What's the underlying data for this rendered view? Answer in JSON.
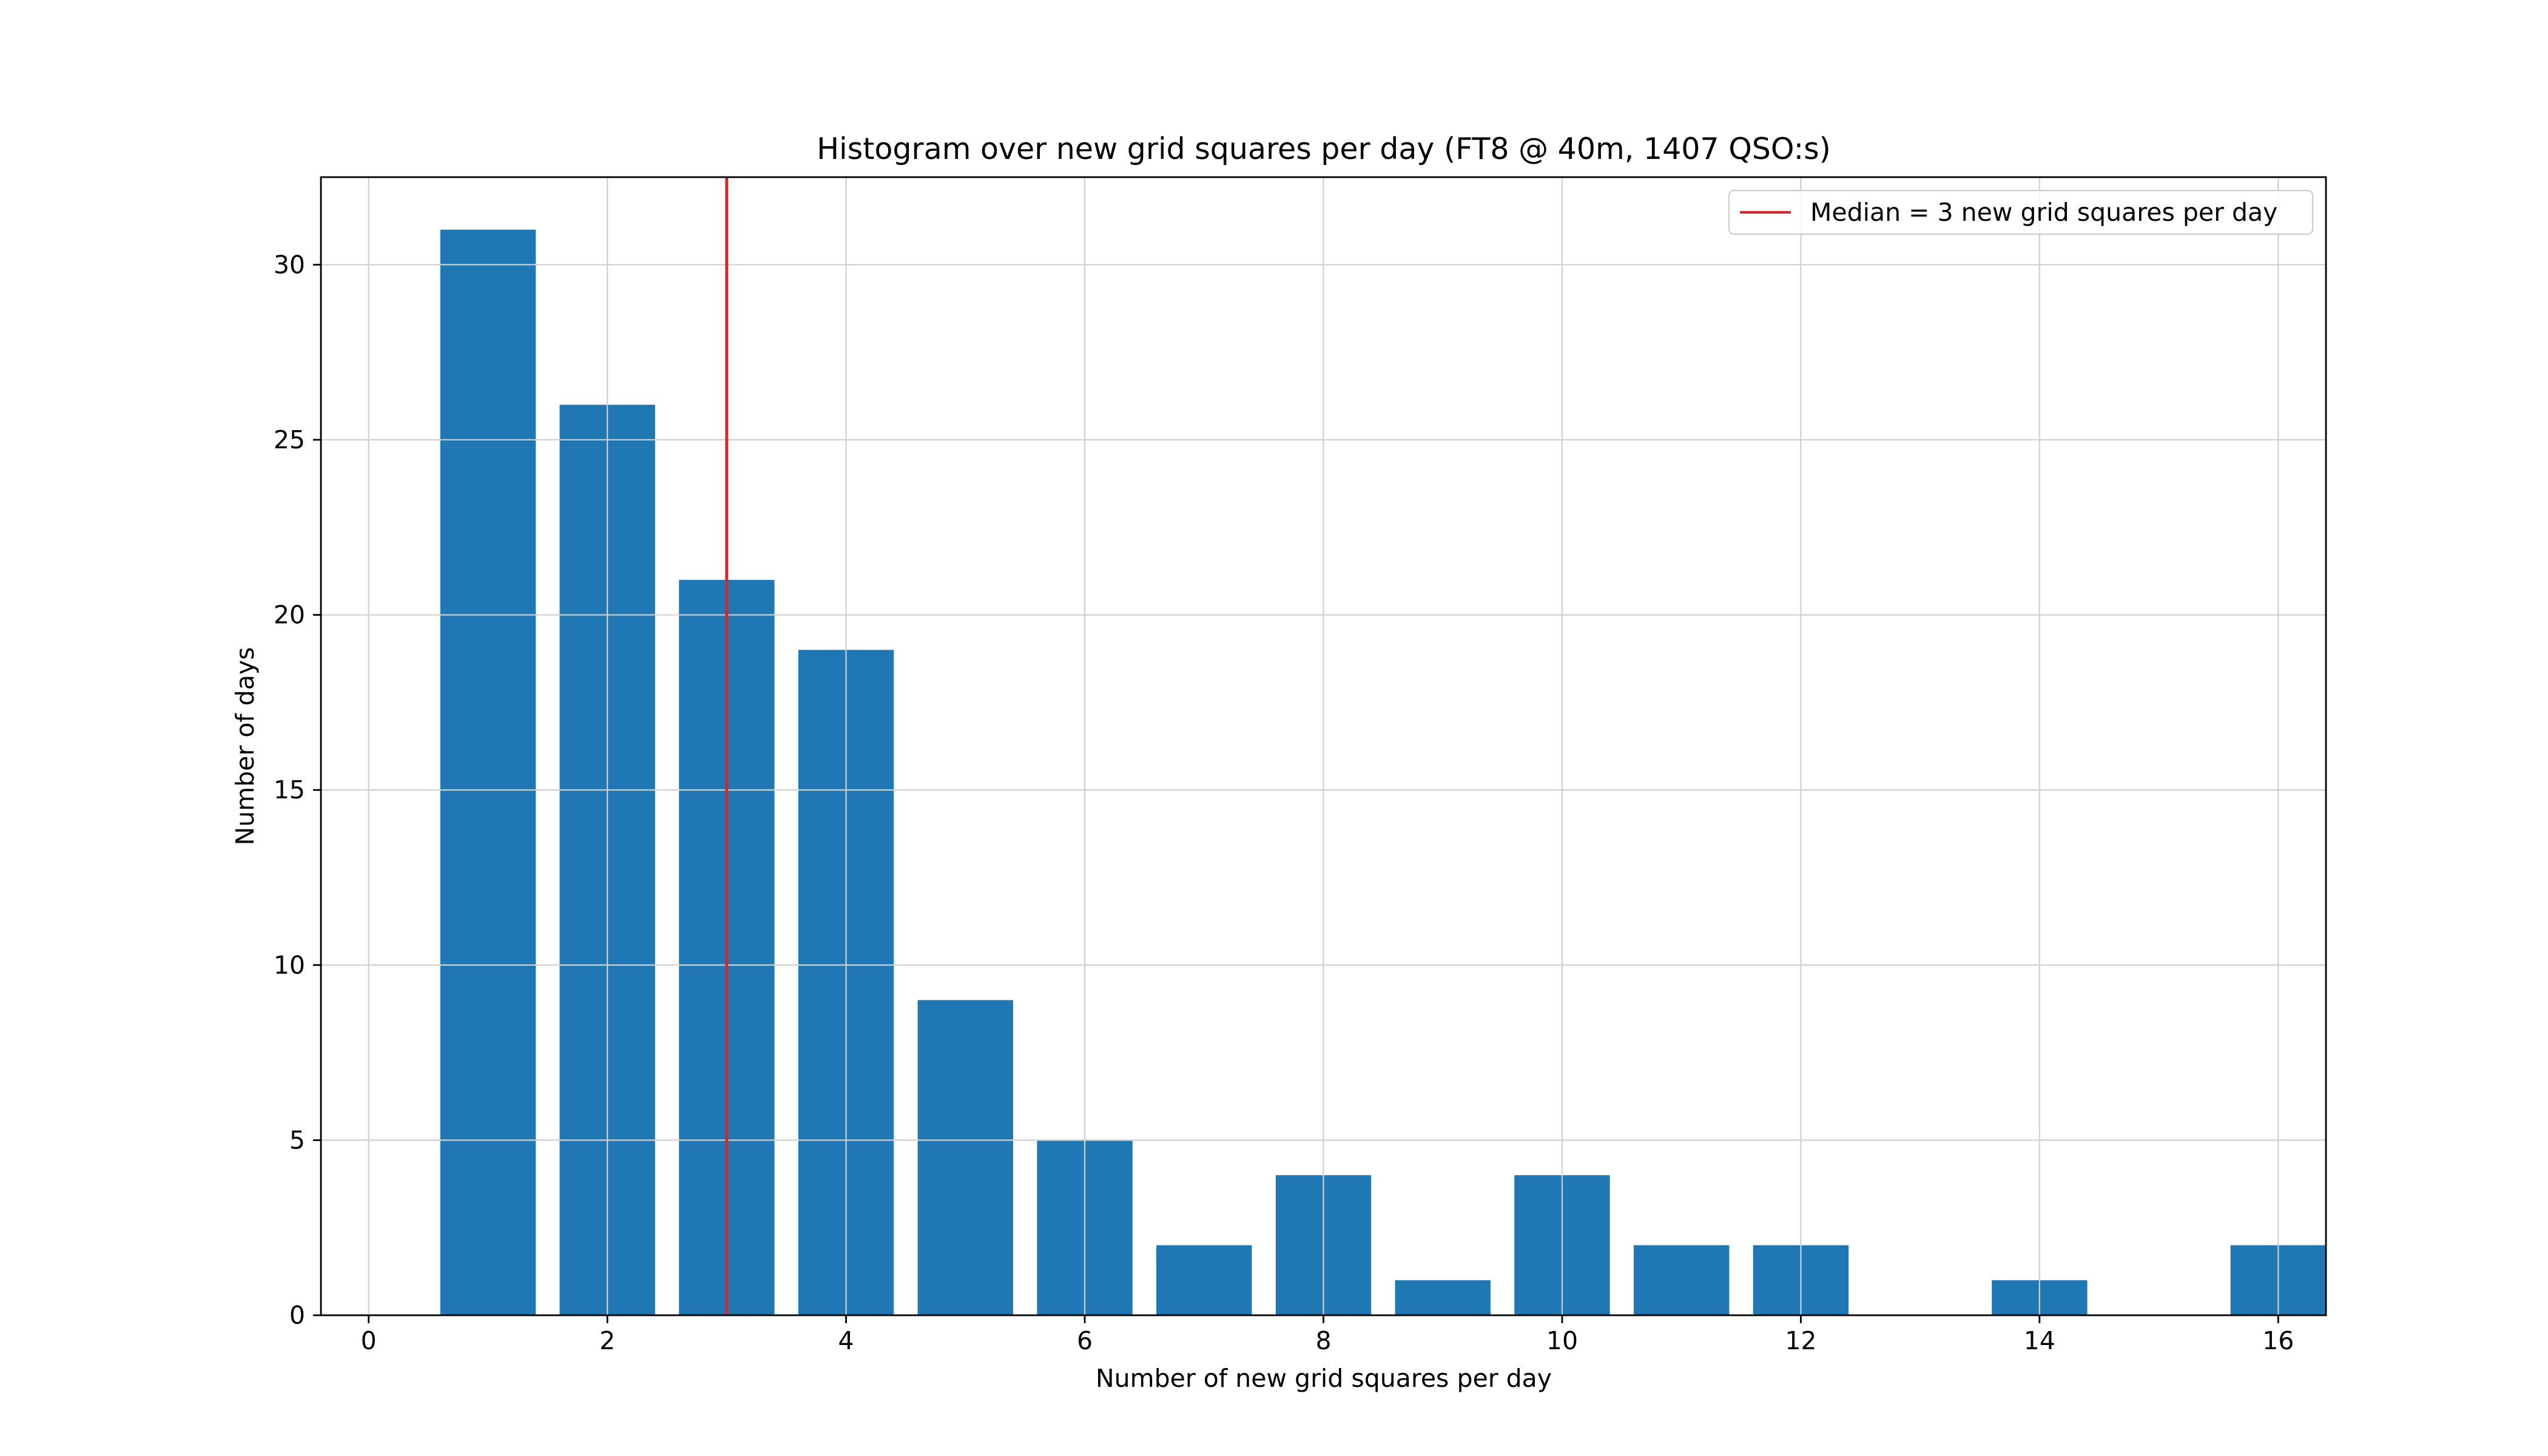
{
  "chart_data": {
    "type": "bar",
    "title": "Histogram over new grid squares per day (FT8 @ 40m, 1407 QSO:s)",
    "xlabel": "Number of new grid squares per day",
    "ylabel": "Number of days",
    "x": [
      1,
      2,
      3,
      4,
      5,
      6,
      7,
      8,
      9,
      10,
      11,
      12,
      14,
      16
    ],
    "values": [
      31,
      26,
      21,
      19,
      9,
      5,
      2,
      4,
      1,
      4,
      2,
      2,
      1,
      2
    ],
    "xlim": [
      -0.4,
      16.4
    ],
    "ylim": [
      0,
      32.5
    ],
    "xticks": [
      "0",
      "2",
      "4",
      "6",
      "8",
      "10",
      "12",
      "14",
      "16"
    ],
    "xtick_values": [
      0,
      2,
      4,
      6,
      8,
      10,
      12,
      14,
      16
    ],
    "yticks": [
      "0",
      "5",
      "10",
      "15",
      "20",
      "25",
      "30"
    ],
    "ytick_values": [
      0,
      5,
      10,
      15,
      20,
      25,
      30
    ],
    "grid": true,
    "bar_color": "#1f77b4",
    "median": {
      "value": 3,
      "color": "#d62728",
      "label": "Median = 3 new grid squares per day"
    },
    "legend_position": "top-right"
  }
}
